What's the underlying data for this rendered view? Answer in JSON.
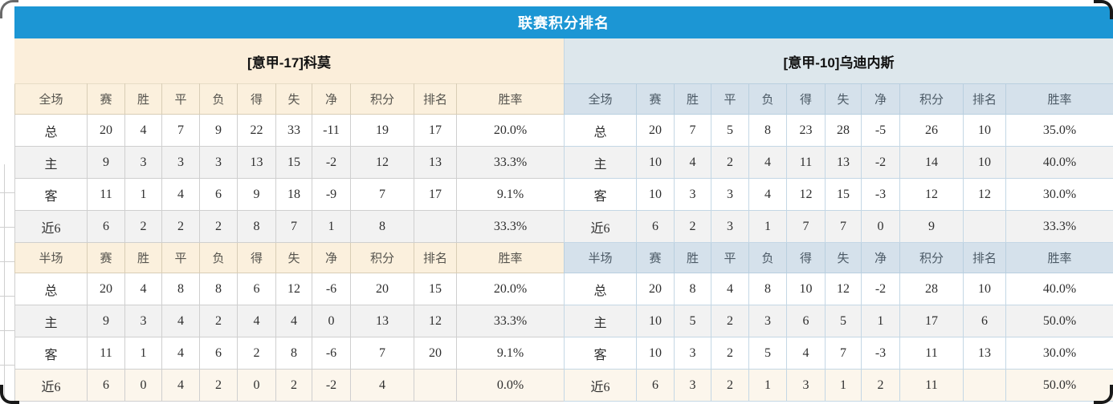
{
  "title_bar": {
    "label": "联赛积分排名"
  },
  "colors": {
    "title_bg": "#1c96d4",
    "cream_header": "#fbeeda",
    "cream_th": "#fbf0dd",
    "blue_header": "#dde7ec",
    "blue_th": "#d5e1eb",
    "points_red": "#f54022",
    "rank_blue": "#2e82d0",
    "home_red": "#e04545",
    "away_blue": "#5f5fd8"
  },
  "columns": {
    "stats": [
      "赛",
      "胜",
      "平",
      "负",
      "得",
      "失",
      "净"
    ],
    "points": "积分",
    "rank": "排名",
    "rate": "胜率"
  },
  "teams": [
    {
      "name": "[意甲-17]科莫",
      "theme": "cream",
      "sections": [
        {
          "first_col": "全场",
          "rows": [
            {
              "label": "总",
              "type": "total",
              "stats": [
                "20",
                "4",
                "7",
                "9",
                "22",
                "33",
                "-11"
              ],
              "points": "19",
              "rank": "17",
              "rate": "20.0%"
            },
            {
              "label": "主",
              "type": "home",
              "stats": [
                "9",
                "3",
                "3",
                "3",
                "13",
                "15",
                "-2"
              ],
              "points": "12",
              "rank": "13",
              "rate": "33.3%"
            },
            {
              "label": "客",
              "type": "away",
              "stats": [
                "11",
                "1",
                "4",
                "6",
                "9",
                "18",
                "-9"
              ],
              "points": "7",
              "rank": "17",
              "rate": "9.1%"
            },
            {
              "label": "近6",
              "type": "recent",
              "stats": [
                "6",
                "2",
                "2",
                "2",
                "8",
                "7",
                "1"
              ],
              "points": "8",
              "rank": "",
              "rate": "33.3%"
            }
          ]
        },
        {
          "first_col": "半场",
          "rows": [
            {
              "label": "总",
              "type": "total",
              "stats": [
                "20",
                "4",
                "8",
                "8",
                "6",
                "12",
                "-6"
              ],
              "points": "20",
              "rank": "15",
              "rate": "20.0%"
            },
            {
              "label": "主",
              "type": "home",
              "stats": [
                "9",
                "3",
                "4",
                "2",
                "4",
                "4",
                "0"
              ],
              "points": "13",
              "rank": "12",
              "rate": "33.3%"
            },
            {
              "label": "客",
              "type": "away",
              "stats": [
                "11",
                "1",
                "4",
                "6",
                "2",
                "8",
                "-6"
              ],
              "points": "7",
              "rank": "20",
              "rate": "9.1%"
            },
            {
              "label": "近6",
              "type": "recent",
              "stats": [
                "6",
                "0",
                "4",
                "2",
                "0",
                "2",
                "-2"
              ],
              "points": "4",
              "rank": "",
              "rate": "0.0%"
            }
          ]
        }
      ]
    },
    {
      "name": "[意甲-10]乌迪内斯",
      "theme": "blue",
      "sections": [
        {
          "first_col": "全场",
          "rows": [
            {
              "label": "总",
              "type": "total",
              "stats": [
                "20",
                "7",
                "5",
                "8",
                "23",
                "28",
                "-5"
              ],
              "points": "26",
              "rank": "10",
              "rate": "35.0%"
            },
            {
              "label": "主",
              "type": "home",
              "stats": [
                "10",
                "4",
                "2",
                "4",
                "11",
                "13",
                "-2"
              ],
              "points": "14",
              "rank": "10",
              "rate": "40.0%"
            },
            {
              "label": "客",
              "type": "away",
              "stats": [
                "10",
                "3",
                "3",
                "4",
                "12",
                "15",
                "-3"
              ],
              "points": "12",
              "rank": "12",
              "rate": "30.0%"
            },
            {
              "label": "近6",
              "type": "recent",
              "stats": [
                "6",
                "2",
                "3",
                "1",
                "7",
                "7",
                "0"
              ],
              "points": "9",
              "rank": "",
              "rate": "33.3%"
            }
          ]
        },
        {
          "first_col": "半场",
          "rows": [
            {
              "label": "总",
              "type": "total",
              "stats": [
                "20",
                "8",
                "4",
                "8",
                "10",
                "12",
                "-2"
              ],
              "points": "28",
              "rank": "10",
              "rate": "40.0%"
            },
            {
              "label": "主",
              "type": "home",
              "stats": [
                "10",
                "5",
                "2",
                "3",
                "6",
                "5",
                "1"
              ],
              "points": "17",
              "rank": "6",
              "rate": "50.0%"
            },
            {
              "label": "客",
              "type": "away",
              "stats": [
                "10",
                "3",
                "2",
                "5",
                "4",
                "7",
                "-3"
              ],
              "points": "11",
              "rank": "13",
              "rate": "30.0%"
            },
            {
              "label": "近6",
              "type": "recent",
              "stats": [
                "6",
                "3",
                "2",
                "1",
                "3",
                "1",
                "2"
              ],
              "points": "11",
              "rank": "",
              "rate": "50.0%"
            }
          ]
        }
      ]
    }
  ]
}
